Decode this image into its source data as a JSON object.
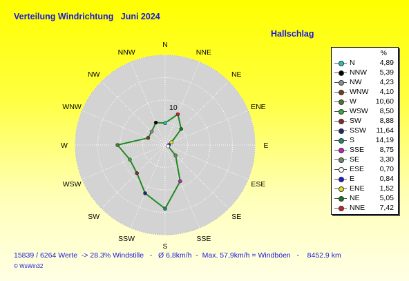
{
  "header": {
    "title": "Verteilung Windrichtung   Juni 2024",
    "location": "Hallschlag"
  },
  "footer": {
    "stats": "15839 / 6264 Werte  -> 28.3% Windstille   -   Ø 6,8km/h  -  Max. 57,9km/h = Windböen   -    8452.9 km",
    "credit": "© WsWin32"
  },
  "colors": {
    "line": "#1f8a1f",
    "disc": "#d3d3d3",
    "text": "#1a1ad8"
  },
  "chart_data": {
    "type": "radar",
    "unit_label": "%",
    "ring_label": "10",
    "rmax": 20,
    "rings": [
      5,
      10,
      15,
      20
    ],
    "directions": [
      "N",
      "NNE",
      "NE",
      "ENE",
      "E",
      "ESE",
      "SE",
      "SSE",
      "S",
      "SSW",
      "SW",
      "WSW",
      "W",
      "WNW",
      "NW",
      "NNW"
    ],
    "series": [
      {
        "values": [
          4.89,
          7.42,
          5.05,
          1.52,
          0.84,
          0.7,
          3.3,
          8.75,
          14.19,
          11.64,
          8.88,
          8.5,
          10.6,
          4.1,
          4.23,
          5.39
        ]
      }
    ],
    "legend": [
      {
        "label": "N",
        "value": "4,89",
        "color": "#20c0c0"
      },
      {
        "label": "NNW",
        "value": "5,39",
        "color": "#000000"
      },
      {
        "label": "NW",
        "value": "4,23",
        "color": "#909090"
      },
      {
        "label": "WNW",
        "value": "4,10",
        "color": "#7a3a1a"
      },
      {
        "label": "W",
        "value": "10,60",
        "color": "#4a7a2a"
      },
      {
        "label": "WSW",
        "value": "8,50",
        "color": "#30b030"
      },
      {
        "label": "SW",
        "value": "8,88",
        "color": "#8a2a2a"
      },
      {
        "label": "SSW",
        "value": "11,64",
        "color": "#1a2a6a"
      },
      {
        "label": "S",
        "value": "14,19",
        "color": "#1a8a6a"
      },
      {
        "label": "SSE",
        "value": "8,75",
        "color": "#c020c0"
      },
      {
        "label": "SE",
        "value": "3,30",
        "color": "#6a8a6a"
      },
      {
        "label": "ESE",
        "value": "0,70",
        "color": "#ffffff"
      },
      {
        "label": "E",
        "value": "0,84",
        "color": "#1a1ae0"
      },
      {
        "label": "ENE",
        "value": "1,52",
        "color": "#e0e020"
      },
      {
        "label": "NE",
        "value": "5,05",
        "color": "#1a7a1a"
      },
      {
        "label": "NNE",
        "value": "7,42",
        "color": "#d02020"
      }
    ]
  }
}
